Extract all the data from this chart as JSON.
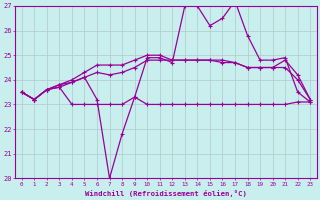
{
  "xlabel": "Windchill (Refroidissement éolien,°C)",
  "xlim": [
    -0.5,
    23.5
  ],
  "ylim": [
    20,
    27
  ],
  "yticks": [
    20,
    21,
    22,
    23,
    24,
    25,
    26,
    27
  ],
  "xticks": [
    0,
    1,
    2,
    3,
    4,
    5,
    6,
    7,
    8,
    9,
    10,
    11,
    12,
    13,
    14,
    15,
    16,
    17,
    18,
    19,
    20,
    21,
    22,
    23
  ],
  "background_color": "#c8eeee",
  "line_color": "#990099",
  "grid_color": "#b0c8c8",
  "lines": [
    [
      23.5,
      23.2,
      23.6,
      23.7,
      23.0,
      23.0,
      23.0,
      23.0,
      23.0,
      23.3,
      23.0,
      23.0,
      23.0,
      23.0,
      23.0,
      23.0,
      23.0,
      23.0,
      23.0,
      23.0,
      23.0,
      23.0,
      23.1,
      23.1
    ],
    [
      23.5,
      23.2,
      23.6,
      23.8,
      23.9,
      24.1,
      24.3,
      24.2,
      24.3,
      24.5,
      24.8,
      24.8,
      24.8,
      24.8,
      24.8,
      24.8,
      24.7,
      24.7,
      24.5,
      24.5,
      24.5,
      24.5,
      24.0,
      23.2
    ],
    [
      23.5,
      23.2,
      23.6,
      23.8,
      24.0,
      24.3,
      24.6,
      24.6,
      24.6,
      24.8,
      25.0,
      25.0,
      24.8,
      24.8,
      24.8,
      24.8,
      24.8,
      24.7,
      24.5,
      24.5,
      24.5,
      24.8,
      24.2,
      23.2
    ],
    [
      23.5,
      23.2,
      23.6,
      23.7,
      23.9,
      24.1,
      23.2,
      20.0,
      21.8,
      23.3,
      24.9,
      24.9,
      24.7,
      27.0,
      27.0,
      26.2,
      26.5,
      27.2,
      25.8,
      24.8,
      24.8,
      24.9,
      23.5,
      23.1
    ]
  ]
}
